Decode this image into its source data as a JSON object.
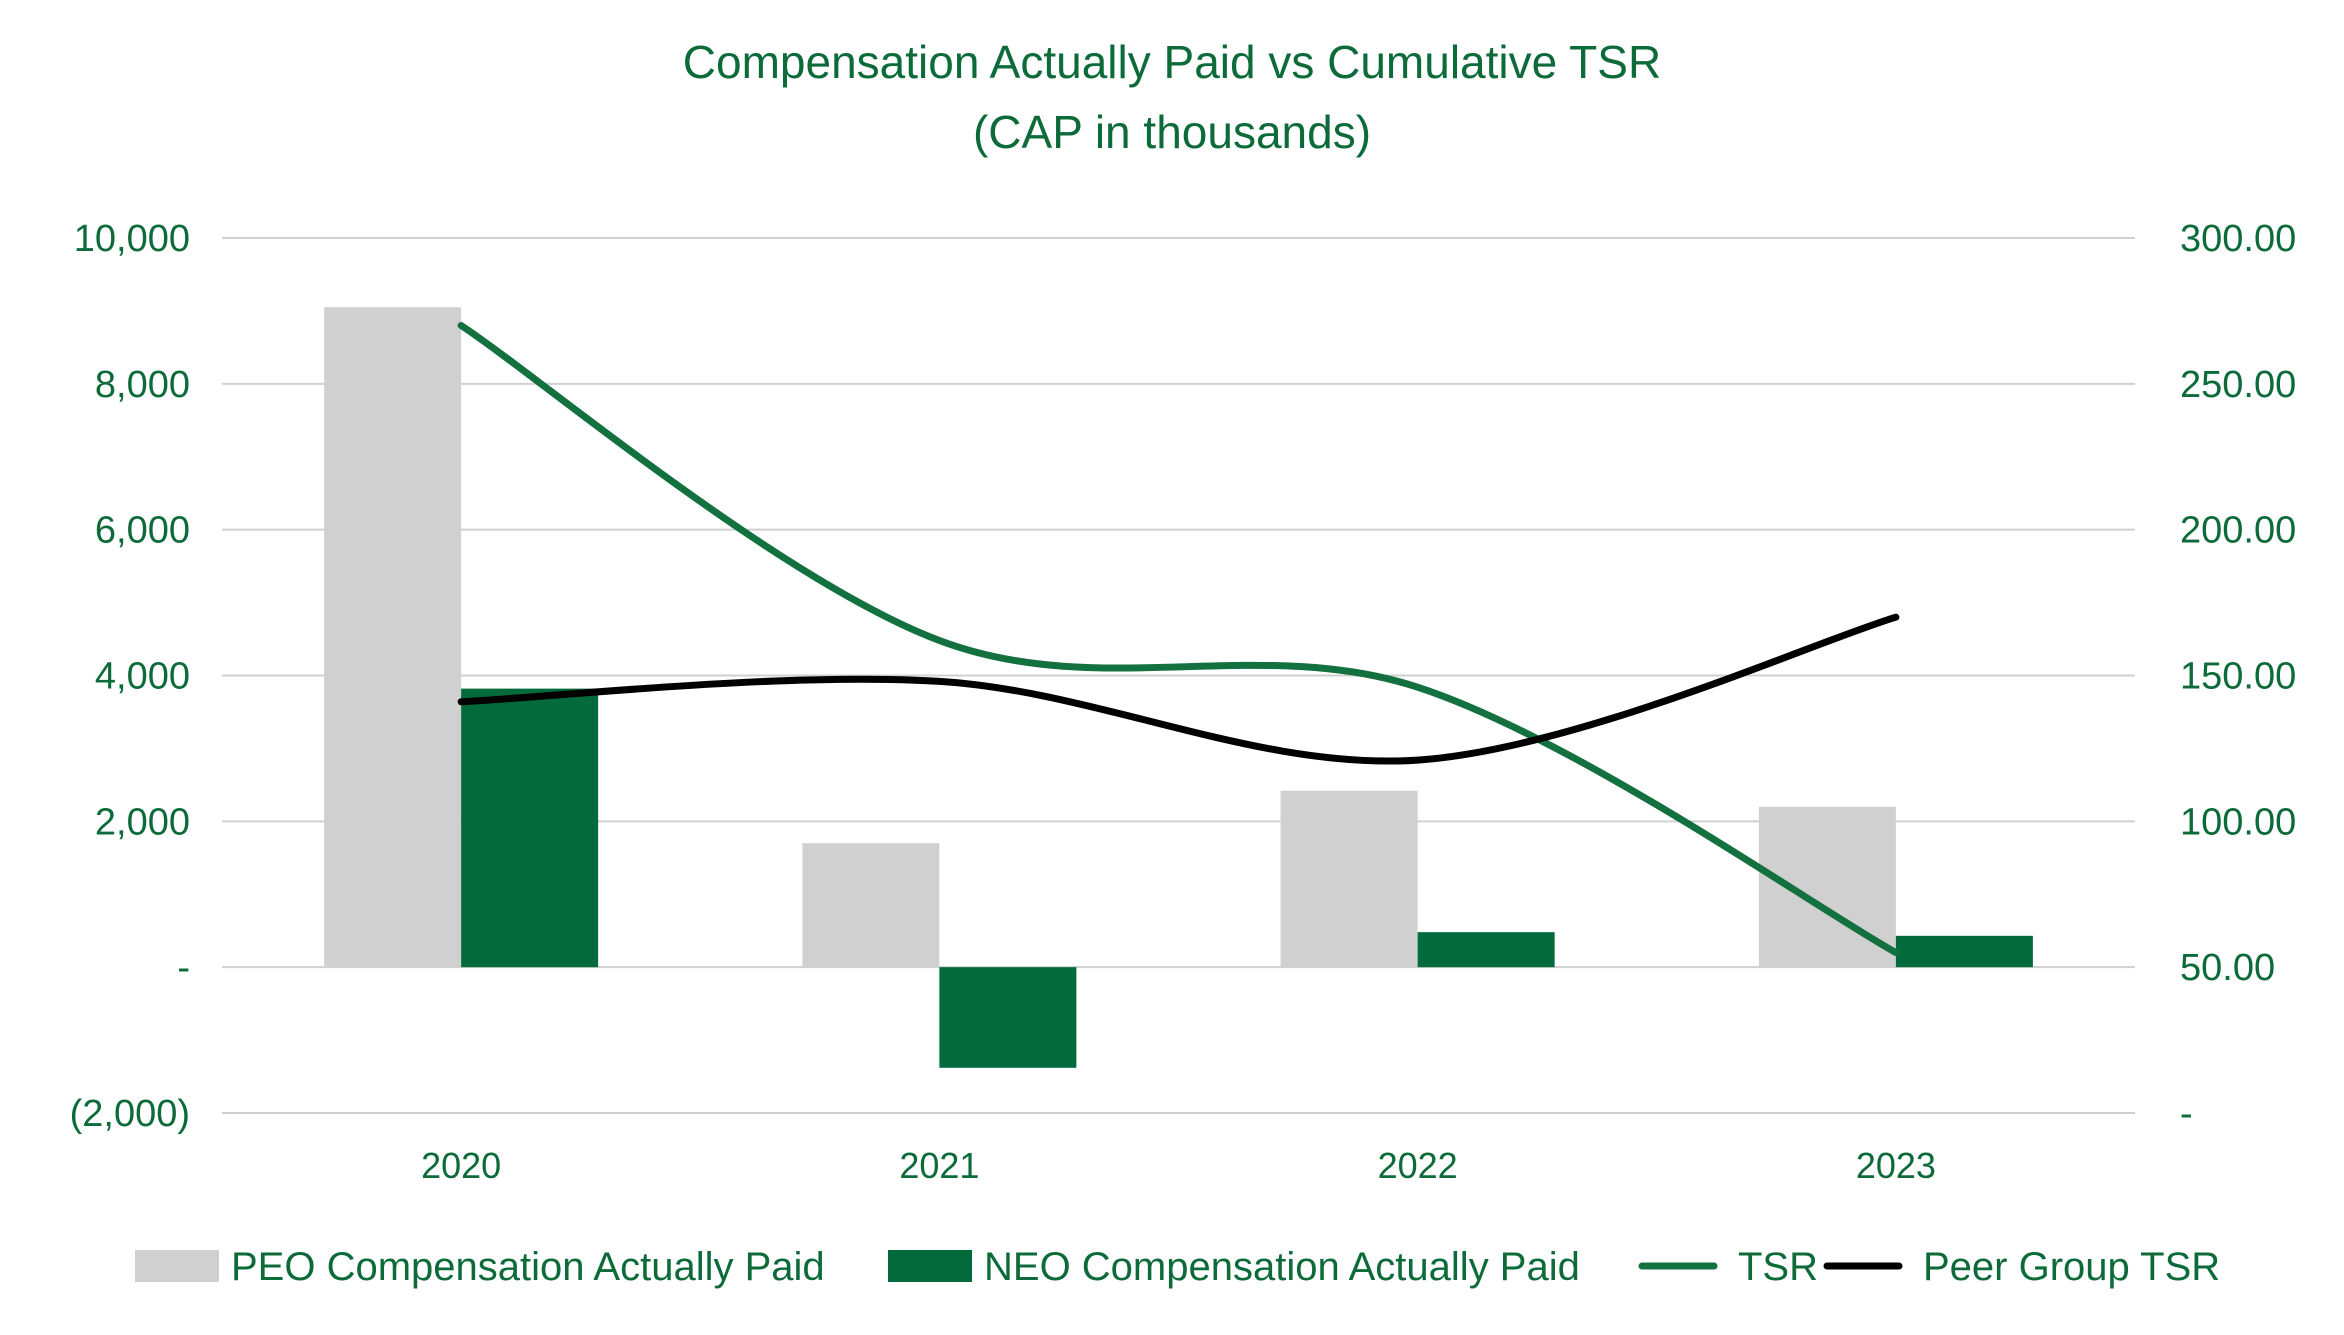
{
  "chart_data": {
    "type": "bar",
    "title": "Compensation Actually Paid vs Cumulative TSR",
    "subtitle": "(CAP in thousands)",
    "categories": [
      "2020",
      "2021",
      "2022",
      "2023"
    ],
    "y_left": {
      "min": -2000,
      "max": 10000,
      "ticks": [
        10000,
        8000,
        6000,
        4000,
        2000,
        0,
        -2000
      ],
      "tick_labels": [
        "10,000",
        "8,000",
        "6,000",
        "4,000",
        "2,000",
        "-",
        "(2,000)"
      ]
    },
    "y_right": {
      "min": 0,
      "max": 300,
      "ticks": [
        300,
        250,
        200,
        150,
        100,
        50,
        0
      ],
      "tick_labels": [
        "300.00",
        "250.00",
        "200.00",
        "150.00",
        "100.00",
        "50.00",
        "-"
      ]
    },
    "series": [
      {
        "name": "PEO Compensation Actually Paid",
        "kind": "bar",
        "axis": "left",
        "color": "#d0d0d0",
        "values": [
          9050,
          1700,
          2420,
          2200
        ]
      },
      {
        "name": "NEO Compensation Actually Paid",
        "kind": "bar",
        "axis": "left",
        "color": "#036a3b",
        "values": [
          3820,
          -1380,
          480,
          430
        ]
      },
      {
        "name": "TSR",
        "kind": "line",
        "axis": "right",
        "color": "#13703f",
        "values": [
          270,
          162,
          146,
          55
        ]
      },
      {
        "name": "Peer Group TSR",
        "kind": "line",
        "axis": "right",
        "color": "#000000",
        "values": [
          141,
          148,
          121,
          170
        ]
      }
    ],
    "legend_position": "bottom",
    "grid": true
  }
}
